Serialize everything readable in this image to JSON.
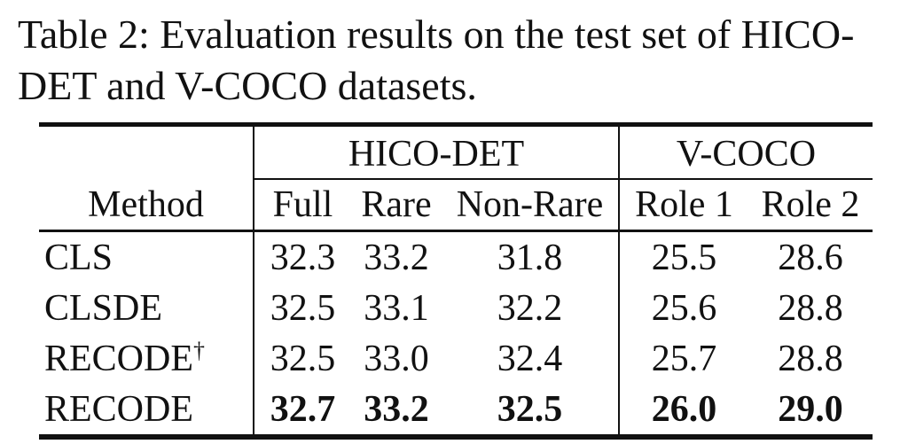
{
  "caption": "Table 2: Evaluation results on the test set of HICO-DET and V-COCO datasets.",
  "table": {
    "method_header": "Method",
    "groups": {
      "hico": "HICO-DET",
      "vcoco": "V-COCO"
    },
    "columns": {
      "full": "Full",
      "rare": "Rare",
      "nonrare": "Non-Rare",
      "role1": "Role 1",
      "role2": "Role 2"
    },
    "rows": [
      {
        "method": "CLS",
        "mark": "",
        "full": "32.3",
        "rare": "33.2",
        "nonrare": "31.8",
        "role1": "25.5",
        "role2": "28.6"
      },
      {
        "method": "CLSDE",
        "mark": "",
        "full": "32.5",
        "rare": "33.1",
        "nonrare": "32.2",
        "role1": "25.6",
        "role2": "28.8"
      },
      {
        "method": "RECODE",
        "mark": "†",
        "full": "32.5",
        "rare": "33.0",
        "nonrare": "32.4",
        "role1": "25.7",
        "role2": "28.8"
      },
      {
        "method": "RECODE",
        "mark": "",
        "full": "32.7",
        "rare": "33.2",
        "nonrare": "32.5",
        "role1": "26.0",
        "role2": "29.0"
      }
    ]
  }
}
